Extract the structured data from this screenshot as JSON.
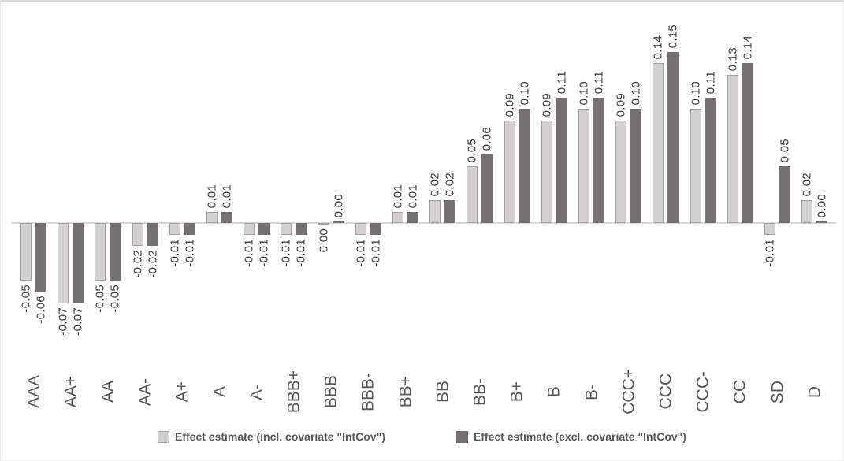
{
  "chart_data": {
    "type": "bar",
    "title": "",
    "xlabel": "",
    "ylabel": "",
    "categories": [
      "AAA",
      "AA+",
      "AA",
      "AA-",
      "A+",
      "A",
      "A-",
      "BBB+",
      "BBB",
      "BBB-",
      "BB+",
      "BB",
      "BB-",
      "B+",
      "B",
      "B-",
      "CCC+",
      "CCC",
      "CCC-",
      "CC",
      "SD",
      "D"
    ],
    "series": [
      {
        "name": "Effect estimate (incl. covariate \"IntCov\")",
        "fill": "#d2cfcf",
        "border": "#a6a2a2",
        "values": [
          -0.05,
          -0.07,
          -0.05,
          -0.02,
          -0.01,
          0.01,
          -0.01,
          -0.01,
          0.0,
          -0.01,
          0.01,
          0.02,
          0.05,
          0.09,
          0.09,
          0.1,
          0.09,
          0.14,
          0.1,
          0.13,
          -0.01,
          0.02
        ]
      },
      {
        "name": "Effect estimate (excl. covariate \"IntCov\")",
        "fill": "#767171",
        "border": "#767171",
        "values": [
          -0.06,
          -0.07,
          -0.05,
          -0.02,
          -0.01,
          0.01,
          -0.01,
          -0.01,
          0.0,
          -0.01,
          0.01,
          0.02,
          0.06,
          0.1,
          0.11,
          0.11,
          0.1,
          0.15,
          0.11,
          0.14,
          0.05,
          0.0
        ]
      }
    ],
    "value_labels": true,
    "value_label_format": "0.00",
    "zero_label_sides": {
      "BBB": [
        "below",
        "above"
      ],
      "D": [
        "above",
        "above"
      ]
    },
    "ylim": [
      -0.07,
      0.15
    ],
    "grid": false,
    "y_axis_ticks_visible": false,
    "legend_position": "bottom",
    "colors": {
      "axis_line": "#d9d9d9",
      "value_label_text": "#3f3f3f",
      "category_label_text": "#595959",
      "legend_text": "#595959"
    }
  }
}
